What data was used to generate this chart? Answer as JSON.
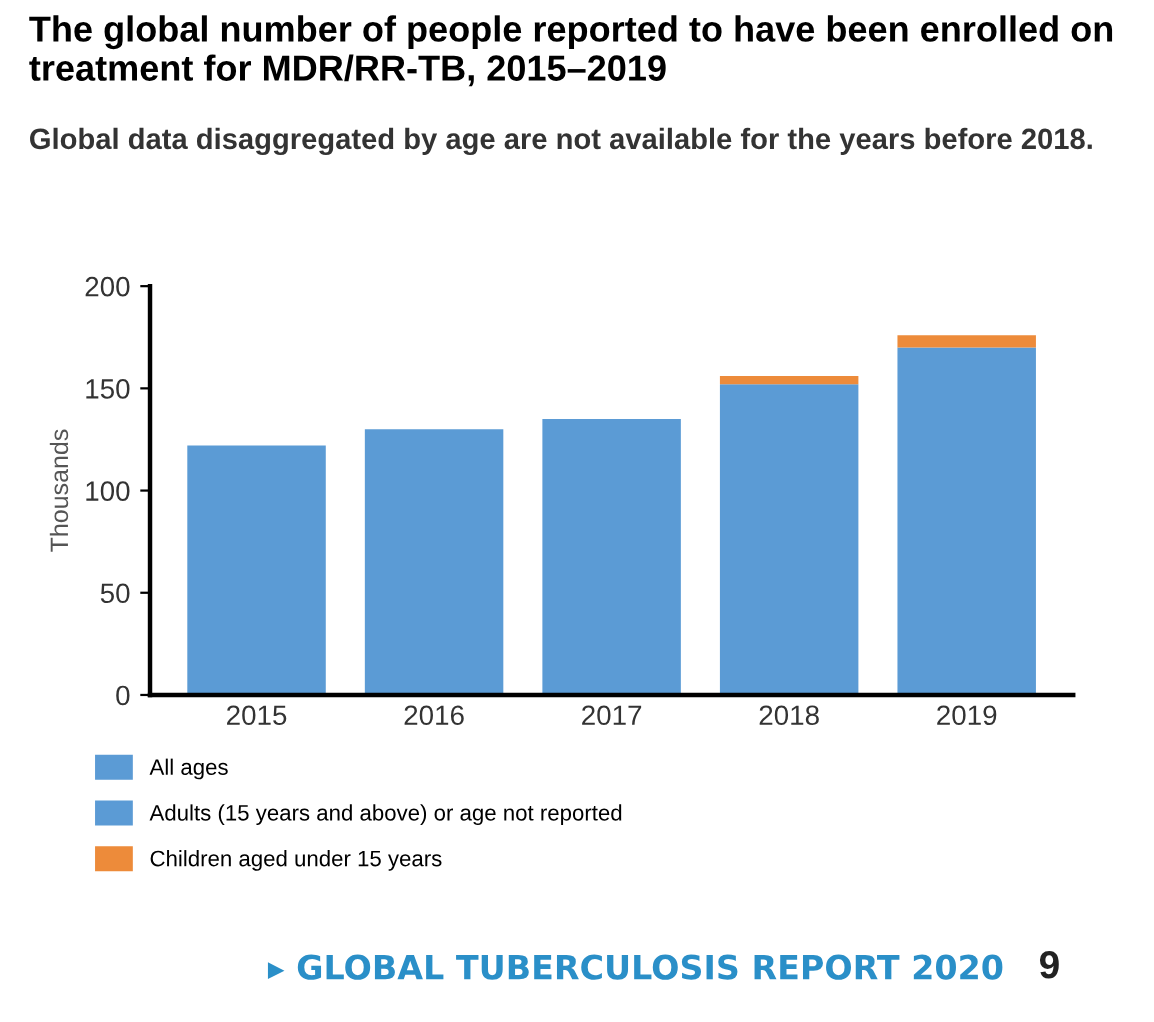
{
  "chart_data": {
    "type": "bar",
    "title": "The global number of people reported to have been enrolled on treatment for MDR/RR-TB, 2015–2019",
    "subtitle": "Global data disaggregated by age are not available for the years before 2018.",
    "ylabel": "Thousands",
    "categories": [
      "2015",
      "2016",
      "2017",
      "2018",
      "2019"
    ],
    "stacked": true,
    "ylim": [
      0,
      200
    ],
    "yticks": [
      0,
      50,
      100,
      150,
      200
    ],
    "grid": false,
    "legend": "bottom left",
    "series": [
      {
        "name": "All ages",
        "color": "#5b9bd5",
        "values": [
          122,
          130,
          135,
          null,
          null
        ]
      },
      {
        "name": "Adults (15 years and above) or age not reported",
        "color": "#5b9bd5",
        "values": [
          null,
          null,
          null,
          152,
          170
        ]
      },
      {
        "name": "Children aged under 15 years",
        "color": "#ed8b3a",
        "values": [
          null,
          null,
          null,
          4,
          6
        ]
      }
    ],
    "annotations": [
      "▸ GLOBAL TUBERCULOSIS REPORT 2020",
      "9"
    ]
  }
}
